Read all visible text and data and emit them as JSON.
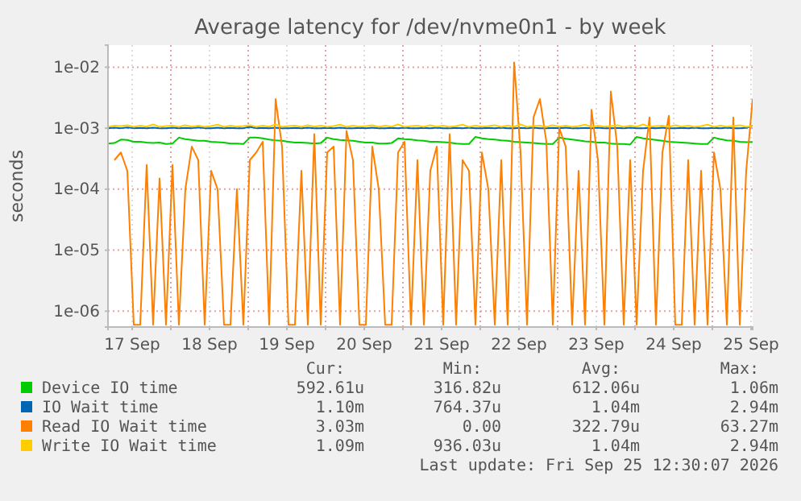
{
  "chart_data": {
    "type": "line",
    "title": "Average latency for /dev/nvme0n1 - by week",
    "ylabel": "seconds",
    "log": true,
    "grid": true,
    "legend": "bottom",
    "x": [
      "2026-09-17T04:30",
      "2026-09-17T06:30",
      "2026-09-17T08:30",
      "2026-09-17T10:30",
      "2026-09-17T12:30",
      "2026-09-17T14:30",
      "2026-09-17T16:30",
      "2026-09-17T18:30",
      "2026-09-17T20:30",
      "2026-09-17T22:30",
      "2026-09-18T00:30",
      "2026-09-18T02:30",
      "2026-09-18T04:30",
      "2026-09-18T06:30",
      "2026-09-18T08:30",
      "2026-09-18T10:30",
      "2026-09-18T12:30",
      "2026-09-18T14:30",
      "2026-09-18T16:30",
      "2026-09-18T18:30",
      "2026-09-18T20:30",
      "2026-09-18T22:30",
      "2026-09-19T00:30",
      "2026-09-19T02:30",
      "2026-09-19T04:30",
      "2026-09-19T06:30",
      "2026-09-19T08:30",
      "2026-09-19T10:30",
      "2026-09-19T12:30",
      "2026-09-19T14:30",
      "2026-09-19T16:30",
      "2026-09-19T18:30",
      "2026-09-19T20:30",
      "2026-09-19T22:30",
      "2026-09-20T00:30",
      "2026-09-20T02:30",
      "2026-09-20T04:30",
      "2026-09-20T06:30",
      "2026-09-20T08:30",
      "2026-09-20T10:30",
      "2026-09-20T12:30",
      "2026-09-20T14:30",
      "2026-09-20T16:30",
      "2026-09-20T18:30",
      "2026-09-20T20:30",
      "2026-09-20T22:30",
      "2026-09-21T00:30",
      "2026-09-21T02:30",
      "2026-09-21T04:30",
      "2026-09-21T06:30",
      "2026-09-21T08:30",
      "2026-09-21T10:30",
      "2026-09-21T12:30",
      "2026-09-21T14:30",
      "2026-09-21T16:30",
      "2026-09-21T18:30",
      "2026-09-21T20:30",
      "2026-09-21T22:30",
      "2026-09-22T00:30",
      "2026-09-22T02:30",
      "2026-09-22T04:30",
      "2026-09-22T06:30",
      "2026-09-22T08:30",
      "2026-09-22T10:30",
      "2026-09-22T12:30",
      "2026-09-22T14:30",
      "2026-09-22T16:30",
      "2026-09-22T18:30",
      "2026-09-22T20:30",
      "2026-09-22T22:30",
      "2026-09-23T00:30",
      "2026-09-23T02:30",
      "2026-09-23T04:30",
      "2026-09-23T06:30",
      "2026-09-23T08:30",
      "2026-09-23T10:30",
      "2026-09-23T12:30",
      "2026-09-23T14:30",
      "2026-09-23T16:30",
      "2026-09-23T18:30",
      "2026-09-23T20:30",
      "2026-09-23T22:30",
      "2026-09-24T00:30",
      "2026-09-24T02:30",
      "2026-09-24T04:30",
      "2026-09-24T06:30",
      "2026-09-24T08:30",
      "2026-09-24T10:30",
      "2026-09-24T12:30",
      "2026-09-24T14:30",
      "2026-09-24T16:30",
      "2026-09-24T18:30",
      "2026-09-24T20:30",
      "2026-09-24T22:30",
      "2026-09-25T00:30",
      "2026-09-25T02:30",
      "2026-09-25T04:30",
      "2026-09-25T06:30",
      "2026-09-25T08:30",
      "2026-09-25T10:30",
      "2026-09-25T12:30"
    ],
    "xlim": [
      "2026-09-17T04:30",
      "2026-09-25T12:30"
    ],
    "xticks": [
      {
        "value": "2026-09-17T12:00",
        "label": "17 Sep"
      },
      {
        "value": "2026-09-18T00:00",
        "label": null
      },
      {
        "value": "2026-09-18T12:00",
        "label": "18 Sep"
      },
      {
        "value": "2026-09-19T00:00",
        "label": null
      },
      {
        "value": "2026-09-19T12:00",
        "label": "19 Sep"
      },
      {
        "value": "2026-09-20T00:00",
        "label": null
      },
      {
        "value": "2026-09-20T12:00",
        "label": "20 Sep"
      },
      {
        "value": "2026-09-21T00:00",
        "label": null
      },
      {
        "value": "2026-09-21T12:00",
        "label": "21 Sep"
      },
      {
        "value": "2026-09-22T00:00",
        "label": null
      },
      {
        "value": "2026-09-22T12:00",
        "label": "22 Sep"
      },
      {
        "value": "2026-09-23T00:00",
        "label": null
      },
      {
        "value": "2026-09-23T12:00",
        "label": "23 Sep"
      },
      {
        "value": "2026-09-24T00:00",
        "label": null
      },
      {
        "value": "2026-09-24T12:00",
        "label": "24 Sep"
      },
      {
        "value": "2026-09-25T00:00",
        "label": null
      },
      {
        "value": "2026-09-25T12:00",
        "label": "25 Sep"
      }
    ],
    "ylim": [
      5.5e-07,
      0.023
    ],
    "yticks": [
      {
        "value": 1e-06,
        "label": "1e-06"
      },
      {
        "value": 1e-05,
        "label": "1e-05"
      },
      {
        "value": 0.0001,
        "label": "1e-04"
      },
      {
        "value": 0.001,
        "label": "1e-03"
      },
      {
        "value": 0.01,
        "label": "1e-02"
      }
    ],
    "series": [
      {
        "name": "Device IO time",
        "color": "#00cc00",
        "values": [
          0.00056,
          0.00057,
          0.00065,
          0.00064,
          0.0006,
          0.0006,
          0.00058,
          0.00057,
          0.00058,
          0.00055,
          0.00056,
          0.0007,
          0.00066,
          0.00064,
          0.00062,
          0.00062,
          0.0006,
          0.00059,
          0.00058,
          0.00056,
          0.00056,
          0.00055,
          0.0007,
          0.0007,
          0.00068,
          0.00065,
          0.00063,
          0.00062,
          0.0006,
          0.00058,
          0.00058,
          0.00057,
          0.00056,
          0.00057,
          0.0007,
          0.00066,
          0.00064,
          0.00063,
          0.00062,
          0.0006,
          0.00058,
          0.00058,
          0.00056,
          0.00056,
          0.00057,
          0.00068,
          0.00066,
          0.00065,
          0.00063,
          0.00062,
          0.0006,
          0.0006,
          0.00059,
          0.00058,
          0.00056,
          0.00055,
          0.00055,
          0.00072,
          0.00068,
          0.00066,
          0.00065,
          0.00063,
          0.00062,
          0.0006,
          0.00059,
          0.00058,
          0.00057,
          0.00056,
          0.00055,
          0.00055,
          0.0007,
          0.00067,
          0.00065,
          0.00063,
          0.00061,
          0.0006,
          0.00058,
          0.00058,
          0.00056,
          0.00055,
          0.00055,
          0.00054,
          0.00072,
          0.00068,
          0.00066,
          0.00064,
          0.00062,
          0.0006,
          0.00059,
          0.00058,
          0.00057,
          0.00056,
          0.00055,
          0.00055,
          0.0007,
          0.00066,
          0.00063,
          0.00062,
          0.0006,
          0.00059,
          0.000593
        ]
      },
      {
        "name": "IO Wait time",
        "color": "#0066b3",
        "values": [
          0.001,
          0.00102,
          0.001,
          0.00103,
          0.001,
          0.00101,
          0.001,
          0.00102,
          0.001,
          0.001,
          0.00102,
          0.001,
          0.00101,
          0.001,
          0.00103,
          0.001,
          0.001,
          0.00102,
          0.001,
          0.00101,
          0.001,
          0.001,
          0.00105,
          0.001,
          0.00101,
          0.001,
          0.00102,
          0.001,
          0.001,
          0.00101,
          0.001,
          0.00102,
          0.001,
          0.001,
          0.00101,
          0.001,
          0.00102,
          0.001,
          0.001,
          0.00101,
          0.001,
          0.00102,
          0.001,
          0.001,
          0.00101,
          0.001,
          0.00102,
          0.001,
          0.001,
          0.00101,
          0.001,
          0.00102,
          0.001,
          0.001,
          0.00101,
          0.001,
          0.00102,
          0.001,
          0.001,
          0.00101,
          0.001,
          0.00102,
          0.001,
          0.001,
          0.00101,
          0.001,
          0.00102,
          0.001,
          0.001,
          0.00101,
          0.001,
          0.00102,
          0.001,
          0.001,
          0.00101,
          0.001,
          0.00102,
          0.001,
          0.001,
          0.00101,
          0.001,
          0.00102,
          0.001,
          0.001,
          0.00101,
          0.001,
          0.00102,
          0.001,
          0.001,
          0.00101,
          0.001,
          0.00102,
          0.001,
          0.001,
          0.00101,
          0.001,
          0.00102,
          0.001,
          0.001,
          0.00101,
          0.0011
        ]
      },
      {
        "name": "Read IO Wait time",
        "color": "#ff8000",
        "values": [
          null,
          0.0003,
          0.0004,
          0.0002,
          6e-07,
          6e-07,
          0.00025,
          6e-07,
          0.00015,
          6e-07,
          0.00025,
          6e-07,
          0.0001,
          0.0005,
          0.0003,
          6e-07,
          0.0002,
          0.0001,
          6e-07,
          6e-07,
          0.0001,
          6e-07,
          0.0003,
          0.0004,
          0.0006,
          6e-07,
          0.003,
          0.0005,
          6e-07,
          6e-07,
          0.0002,
          6e-07,
          0.0008,
          6e-07,
          0.0004,
          0.0005,
          6e-07,
          0.0009,
          0.0003,
          6e-07,
          6e-07,
          0.0005,
          0.0001,
          6e-07,
          6e-07,
          0.0004,
          0.0006,
          6e-07,
          0.0003,
          6e-07,
          0.0002,
          0.0005,
          6e-07,
          0.0008,
          6e-07,
          0.0003,
          0.0002,
          6e-07,
          0.0004,
          0.0001,
          6e-07,
          0.0003,
          6e-07,
          0.012,
          0.0004,
          6e-07,
          0.0015,
          0.003,
          0.0006,
          6e-07,
          0.001,
          0.0005,
          6e-07,
          0.0002,
          6e-07,
          0.002,
          0.0003,
          6e-07,
          0.004,
          0.0005,
          6e-07,
          0.0003,
          6e-07,
          0.0002,
          0.0015,
          6e-07,
          0.0004,
          0.0016,
          6e-07,
          6e-07,
          0.0003,
          6e-07,
          0.0002,
          6e-07,
          0.0004,
          0.0001,
          6e-07,
          0.0015,
          6e-07,
          0.0002,
          0.00303
        ]
      },
      {
        "name": "Write IO Wait time",
        "color": "#ffcc00",
        "values": [
          0.00105,
          0.0011,
          0.00108,
          0.00112,
          0.00105,
          0.0011,
          0.00106,
          0.00115,
          0.00105,
          0.00108,
          0.0011,
          0.00105,
          0.00112,
          0.00106,
          0.0011,
          0.00105,
          0.00108,
          0.00114,
          0.00105,
          0.0011,
          0.00106,
          0.00108,
          0.00112,
          0.00105,
          0.0011,
          0.00106,
          0.00115,
          0.00105,
          0.00108,
          0.0011,
          0.00105,
          0.00112,
          0.00106,
          0.0011,
          0.00105,
          0.00108,
          0.00114,
          0.00105,
          0.0011,
          0.00106,
          0.00108,
          0.00112,
          0.00105,
          0.0011,
          0.00106,
          0.00115,
          0.00105,
          0.00108,
          0.0011,
          0.00105,
          0.00112,
          0.00106,
          0.0011,
          0.00105,
          0.00108,
          0.00114,
          0.00105,
          0.0011,
          0.00106,
          0.00108,
          0.00112,
          0.00105,
          0.0011,
          0.00106,
          0.00115,
          0.00105,
          0.00108,
          0.0011,
          0.00105,
          0.00112,
          0.00106,
          0.0011,
          0.00105,
          0.00108,
          0.00114,
          0.00105,
          0.0011,
          0.00106,
          0.00108,
          0.00112,
          0.00105,
          0.0011,
          0.00106,
          0.00115,
          0.00105,
          0.00108,
          0.0011,
          0.00105,
          0.00112,
          0.00106,
          0.0011,
          0.00105,
          0.00108,
          0.00114,
          0.00105,
          0.0011,
          0.00106,
          0.00108,
          0.00112,
          0.00105,
          0.00109
        ]
      }
    ],
    "annotations": [
      "Cur:",
      "Min:",
      "Avg:",
      "Max:",
      "592.61u",
      "316.82u",
      "612.06u",
      "1.06m",
      "1.10m",
      "764.37u",
      "1.04m",
      "2.94m",
      "3.03m",
      "0.00",
      "322.79u",
      "63.27m",
      "1.09m",
      "936.03u",
      "1.04m",
      "2.94m",
      "Last update: Fri Sep 25 12:30:07 2026"
    ]
  }
}
